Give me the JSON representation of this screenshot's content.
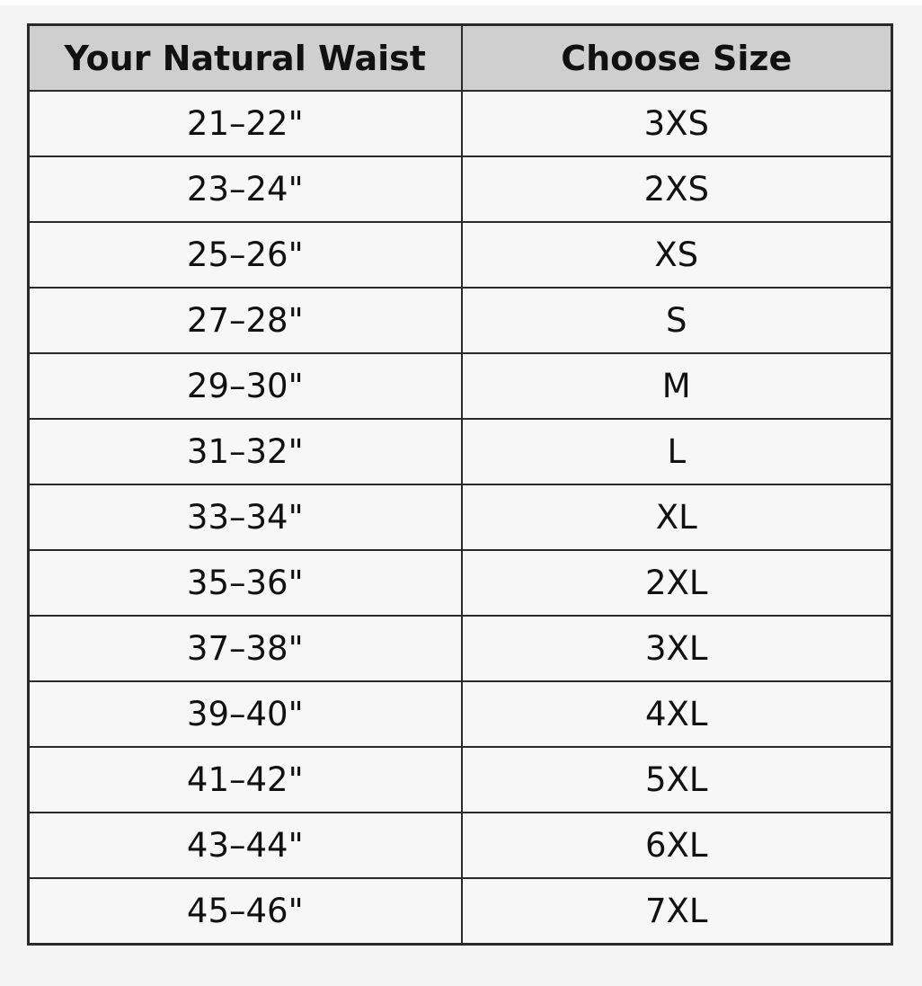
{
  "table": {
    "headers": [
      "Your Natural Waist",
      "Choose Size"
    ],
    "rows": [
      [
        "21–22\"",
        "3XS"
      ],
      [
        "23–24\"",
        "2XS"
      ],
      [
        "25–26\"",
        "XS"
      ],
      [
        "27–28\"",
        "S"
      ],
      [
        "29–30\"",
        "M"
      ],
      [
        "31–32\"",
        "L"
      ],
      [
        "33–34\"",
        "XL"
      ],
      [
        "35–36\"",
        "2XL"
      ],
      [
        "37–38\"",
        "3XL"
      ],
      [
        "39–40\"",
        "4XL"
      ],
      [
        "41–42\"",
        "5XL"
      ],
      [
        "43–44\"",
        "6XL"
      ],
      [
        "45–46\"",
        "7XL"
      ]
    ]
  },
  "colors": {
    "header_bg": "#cfcfcf",
    "border": "#2a2a2a",
    "page_bg": "#f4f4f4"
  }
}
